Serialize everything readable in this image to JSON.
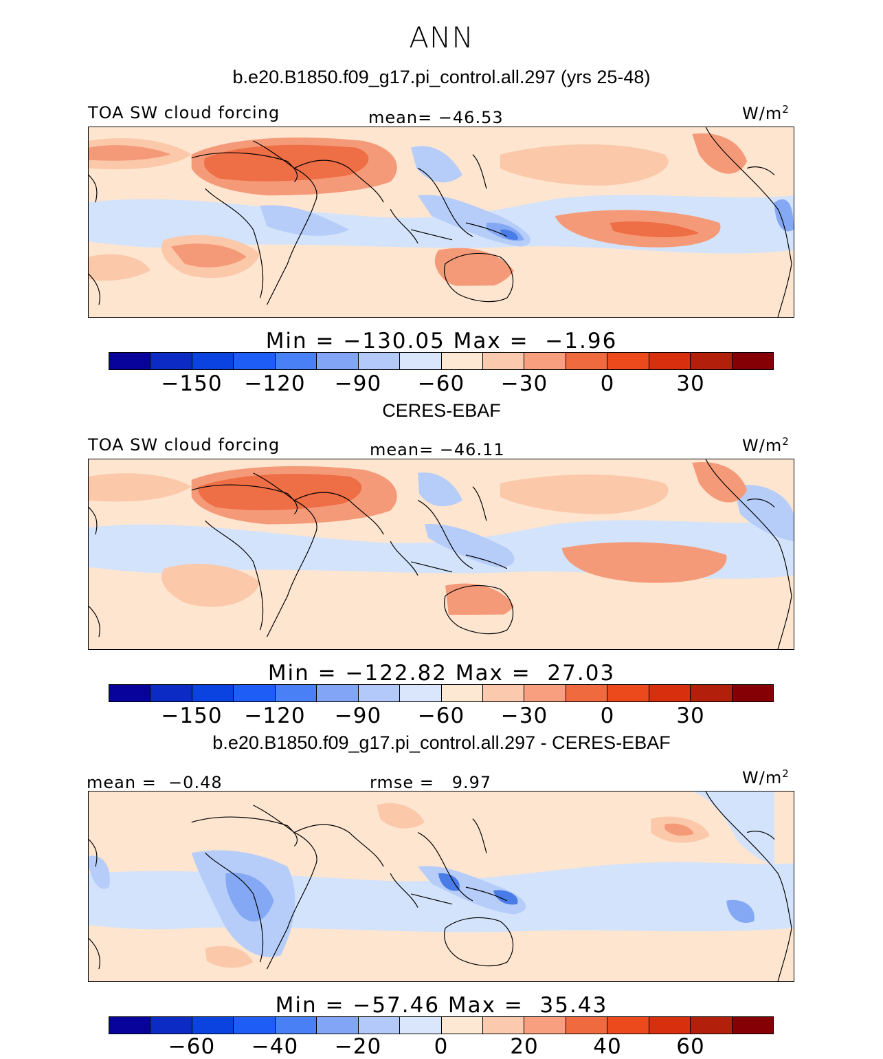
{
  "title": "ANN",
  "panels": [
    {
      "id": "model",
      "header": "b.e20.B1850.f09_g17.pi_control.all.297 (yrs 25-48)",
      "left_label": "TOA SW cloud forcing",
      "center_label": "mean= −46.53",
      "unit_base": "W/m",
      "unit_exp": "2",
      "minmax": "Min = −130.05 Max =  −1.96",
      "stats": {
        "mean": -46.53,
        "min": -130.05,
        "max": -1.96
      },
      "colorbar_ticks": [
        "−150",
        "−120",
        "−90",
        "−60",
        "−30",
        "0",
        "30"
      ],
      "colorbar_tick_values": [
        -150,
        -120,
        -90,
        -60,
        -30,
        0,
        30
      ]
    },
    {
      "id": "obs",
      "header": "CERES-EBAF",
      "left_label": "TOA SW cloud forcing",
      "center_label": "mean= −46.11",
      "unit_base": "W/m",
      "unit_exp": "2",
      "minmax": "Min = −122.82 Max =  27.03",
      "stats": {
        "mean": -46.11,
        "min": -122.82,
        "max": 27.03
      },
      "colorbar_ticks": [
        "−150",
        "−120",
        "−90",
        "−60",
        "−30",
        "0",
        "30"
      ],
      "colorbar_tick_values": [
        -150,
        -120,
        -90,
        -60,
        -30,
        0,
        30
      ]
    },
    {
      "id": "diff",
      "header": "b.e20.B1850.f09_g17.pi_control.all.297 - CERES-EBAF",
      "left_label": "mean =  −0.48",
      "center_label": "rmse =   9.97",
      "unit_base": "W/m",
      "unit_exp": "2",
      "minmax": "Min = −57.46 Max =  35.43",
      "stats": {
        "mean": -0.48,
        "rmse": 9.97,
        "min": -57.46,
        "max": 35.43
      },
      "colorbar_ticks": [
        "−60",
        "−40",
        "−20",
        "0",
        "20",
        "40",
        "60"
      ],
      "colorbar_tick_values": [
        -60,
        -40,
        -20,
        0,
        20,
        40,
        60
      ]
    }
  ],
  "colorbar_colors": [
    "#08049b",
    "#0c2bc4",
    "#0a43e0",
    "#1e5ef7",
    "#4a80f5",
    "#82a6f5",
    "#b3c9f9",
    "#d9e6fb",
    "#fde8d3",
    "#fbc9ad",
    "#f79f7e",
    "#f06a40",
    "#ec4a1c",
    "#d8300f",
    "#b2200b",
    "#850005"
  ],
  "map_colors": {
    "ocean_pale_blue": "#d3e3fb",
    "light_blue": "#b6cdf9",
    "blue": "#84a8f3",
    "deep_blue": "#4a7ce8",
    "pale_orange": "#fde5d0",
    "light_orange": "#fbc8aa",
    "orange": "#f59a78",
    "strong_orange": "#ee6e45",
    "coastline": "#000000"
  }
}
